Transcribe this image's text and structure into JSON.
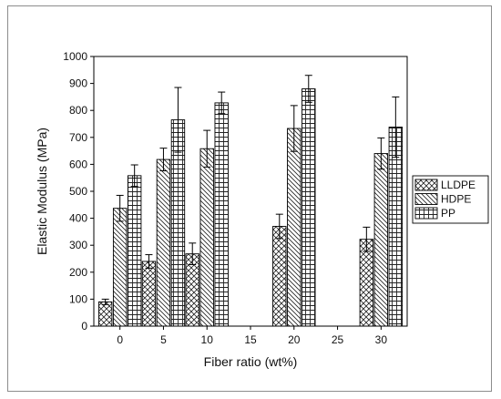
{
  "chart_data": {
    "type": "bar",
    "title": "",
    "xlabel": "Fiber ratio (wt%)",
    "ylabel": "Elastic Modulus (MPa)",
    "ylim": [
      0,
      1000
    ],
    "xlim": [
      -3,
      33
    ],
    "y_ticks": [
      0,
      100,
      200,
      300,
      400,
      500,
      600,
      700,
      800,
      900,
      1000
    ],
    "x_ticks": [
      0,
      5,
      10,
      15,
      20,
      25,
      30
    ],
    "y_tick_labels": [
      "0",
      "100",
      "200",
      "300",
      "400",
      "500",
      "600",
      "700",
      "800",
      "900",
      "1000"
    ],
    "x_tick_labels": [
      "0",
      "5",
      "10",
      "15",
      "20",
      "25",
      "30"
    ],
    "groups": [
      0,
      5,
      10,
      20,
      30
    ],
    "grid": false,
    "legend_position": "right",
    "series": [
      {
        "name": "LLDPE",
        "pattern": "crosshatch",
        "values": [
          90,
          240,
          268,
          370,
          322
        ],
        "errors": [
          10,
          25,
          40,
          45,
          45
        ]
      },
      {
        "name": "HDPE",
        "pattern": "diagonal",
        "values": [
          437,
          618,
          658,
          733,
          640
        ],
        "errors": [
          48,
          42,
          68,
          85,
          58
        ]
      },
      {
        "name": "PP",
        "pattern": "grid",
        "values": [
          558,
          765,
          828,
          880,
          738
        ],
        "errors": [
          40,
          120,
          40,
          50,
          112
        ]
      }
    ]
  }
}
